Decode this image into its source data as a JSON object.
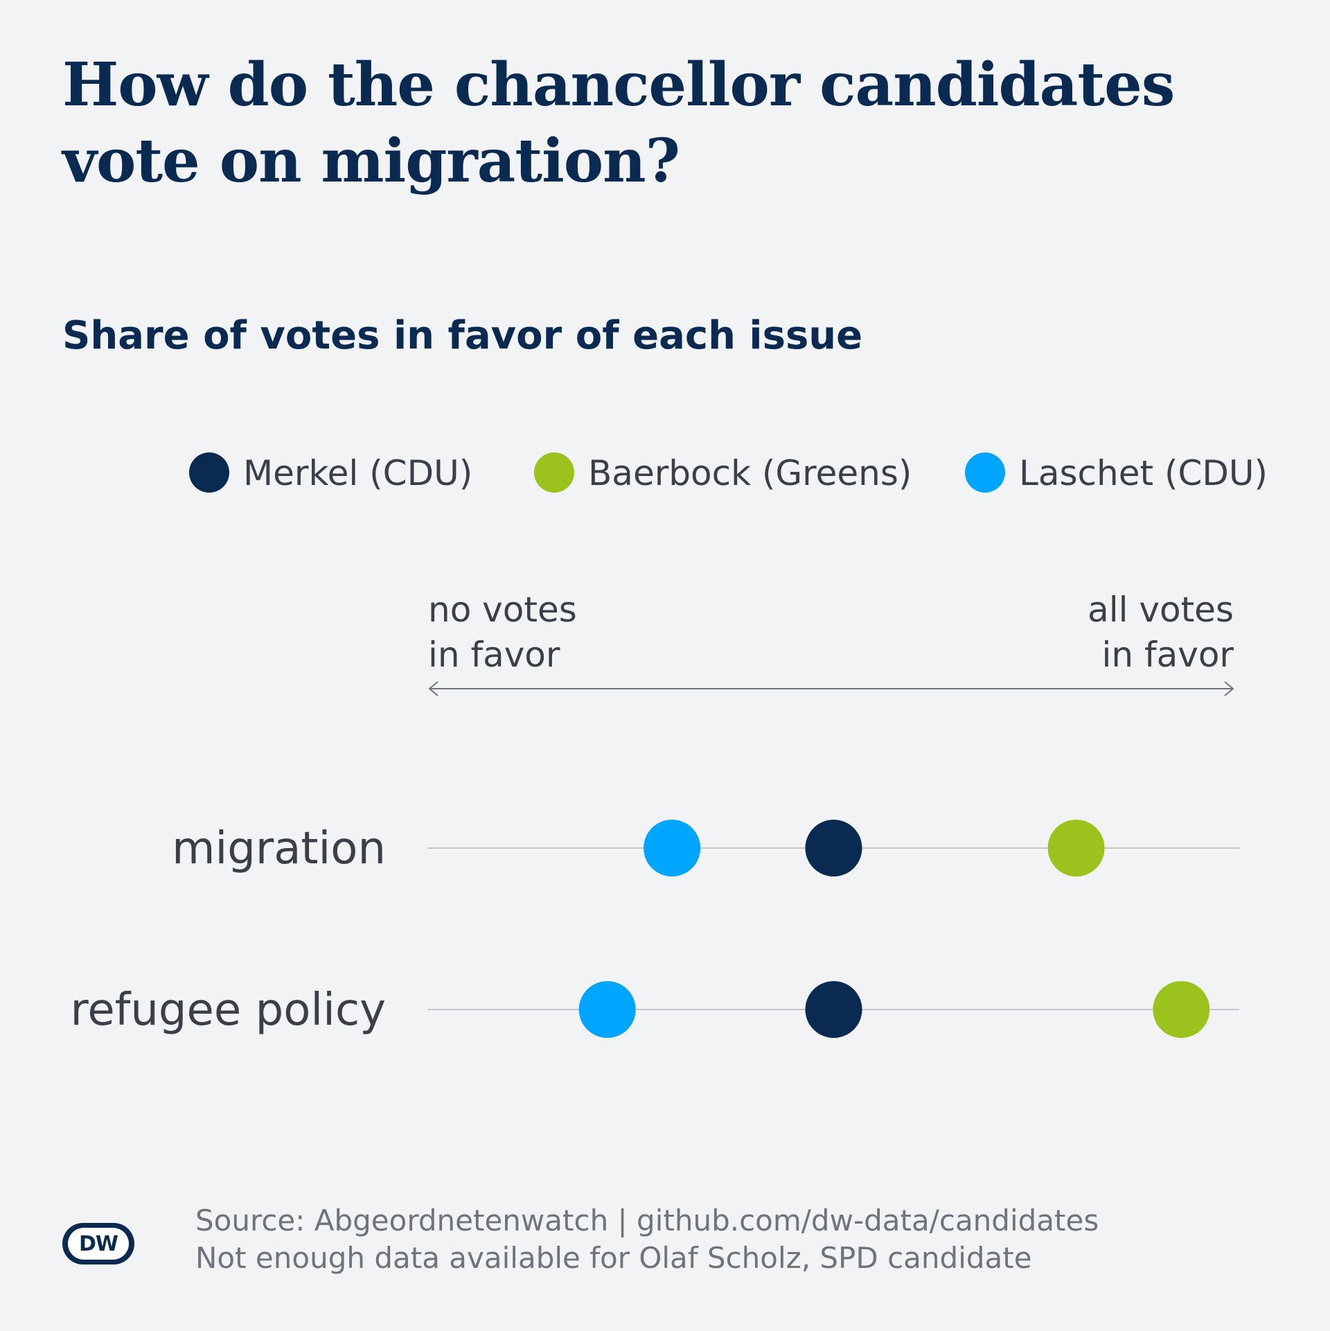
{
  "title_lines": [
    "How do the chancellor candidates",
    "vote on migration?"
  ],
  "subtitle": "Share of votes in favor of each issue",
  "axis_labels": {
    "left": [
      "no votes",
      "in favor"
    ],
    "right": [
      "all votes",
      "in favor"
    ]
  },
  "footer": {
    "source": "Source: Abgeordnetenwatch | github.com/dw-data/candidates",
    "note": "Not enough data available for Olaf Scholz, SPD candidate"
  },
  "logo_text": "DW",
  "chart_data": {
    "type": "scatter",
    "title": "How do the chancellor candidates vote on migration?",
    "subtitle": "Share of votes in favor of each issue",
    "xlim": [
      0,
      1
    ],
    "categories": [
      "migration",
      "refugee policy"
    ],
    "series": [
      {
        "name": "Merkel (CDU)",
        "color": "#0a2a52",
        "values": [
          0.5,
          0.5
        ]
      },
      {
        "name": "Baerbock (Greens)",
        "color": "#9bc31c",
        "values": [
          0.8,
          0.93
        ]
      },
      {
        "name": "Laschet (CDU)",
        "color": "#00a5ff",
        "values": [
          0.3,
          0.22
        ]
      }
    ],
    "grid": false,
    "legend_position": "top"
  }
}
